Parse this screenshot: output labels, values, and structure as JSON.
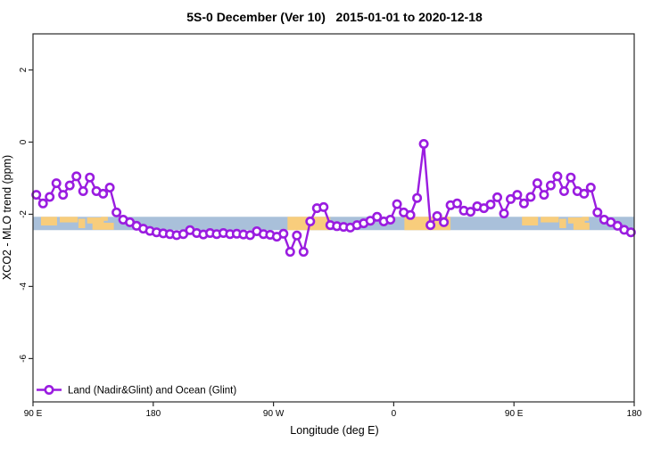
{
  "title": "5S-0 December (Ver 10)   2015-01-01 to 2020-12-18",
  "legend": {
    "label": "Land (Nadir&Glint) and Ocean (Glint)"
  },
  "colors": {
    "series": "#9A1CE0",
    "marker_fill": "#ffffff",
    "ocean": "#A9C0DA",
    "land": "#F8CD7C",
    "axis": "#2a2a2a"
  },
  "chart_data": {
    "type": "line",
    "title": "5S-0 December (Ver 10)   2015-01-01 to 2020-12-18",
    "xlabel": "Longitude (deg E)",
    "ylabel": "XCO2 - MLO trend (ppm)",
    "xlim": [
      90,
      540
    ],
    "ylim": [
      -7.2,
      3.0
    ],
    "grid": false,
    "legend_position": "bottom-left",
    "x_ticks": [
      {
        "value": 90,
        "label": "90 E"
      },
      {
        "value": 180,
        "label": "180"
      },
      {
        "value": 270,
        "label": "90 W"
      },
      {
        "value": 360,
        "label": "0"
      },
      {
        "value": 450,
        "label": "90 E"
      },
      {
        "value": 540,
        "label": "180"
      }
    ],
    "y_ticks": [
      {
        "value": 2,
        "label": "2"
      },
      {
        "value": 0,
        "label": "0"
      },
      {
        "value": -2,
        "label": "-2"
      },
      {
        "value": -4,
        "label": "-4"
      },
      {
        "value": -6,
        "label": "-6"
      }
    ],
    "series": [
      {
        "name": "Land (Nadir&Glint) and Ocean (Glint)",
        "x": [
          92.5,
          97.5,
          102.5,
          107.5,
          112.5,
          117.5,
          122.5,
          127.5,
          132.5,
          137.5,
          142.5,
          147.5,
          152.5,
          157.5,
          162.5,
          167.5,
          172.5,
          177.5,
          182.5,
          187.5,
          192.5,
          197.5,
          202.5,
          207.5,
          212.5,
          217.5,
          222.5,
          227.5,
          232.5,
          237.5,
          242.5,
          247.5,
          252.5,
          257.5,
          262.5,
          267.5,
          272.5,
          277.5,
          282.5,
          287.5,
          292.5,
          297.5,
          302.5,
          307.5,
          312.5,
          317.5,
          322.5,
          327.5,
          332.5,
          337.5,
          342.5,
          347.5,
          352.5,
          357.5,
          362.5,
          367.5,
          372.5,
          377.5,
          382.5,
          387.5,
          392.5,
          397.5,
          402.5,
          407.5,
          412.5,
          417.5,
          422.5,
          427.5,
          432.5,
          437.5,
          442.5,
          447.5,
          452.5,
          457.5,
          462.5,
          467.5,
          472.5,
          477.5,
          482.5,
          487.5,
          492.5,
          497.5,
          502.5,
          507.5,
          512.5,
          517.5,
          522.5,
          527.5,
          532.5,
          537.5
        ],
        "values": [
          -1.46,
          -1.7,
          -1.52,
          -1.14,
          -1.46,
          -1.2,
          -0.95,
          -1.36,
          -0.98,
          -1.36,
          -1.43,
          -1.26,
          -1.95,
          -2.15,
          -2.22,
          -2.32,
          -2.4,
          -2.46,
          -2.5,
          -2.53,
          -2.55,
          -2.58,
          -2.55,
          -2.44,
          -2.52,
          -2.56,
          -2.52,
          -2.55,
          -2.52,
          -2.55,
          -2.54,
          -2.56,
          -2.58,
          -2.47,
          -2.55,
          -2.57,
          -2.62,
          -2.54,
          -3.04,
          -2.59,
          -3.04,
          -2.2,
          -1.83,
          -1.8,
          -2.3,
          -2.33,
          -2.35,
          -2.37,
          -2.3,
          -2.25,
          -2.18,
          -2.07,
          -2.2,
          -2.15,
          -1.72,
          -1.95,
          -2.02,
          -1.55,
          -0.05,
          -2.3,
          -2.05,
          -2.22,
          -1.75,
          -1.7,
          -1.9,
          -1.93,
          -1.78,
          -1.83,
          -1.73,
          -1.53,
          -1.98,
          -1.58,
          -1.46,
          -1.7,
          -1.52,
          -1.14,
          -1.46,
          -1.2,
          -0.95,
          -1.36,
          -0.98,
          -1.36,
          -1.43,
          -1.26,
          -1.95,
          -2.15,
          -2.22,
          -2.32,
          -2.43,
          -2.5
        ]
      }
    ],
    "map_band": {
      "description": "ocean/land strip along the latitude band",
      "y_top": -2.07,
      "y_bottom": -2.44,
      "land_segments": [
        {
          "x0": 280.5,
          "x1": 312.5
        },
        {
          "x0": 368.0,
          "x1": 402.5
        }
      ],
      "land_patches": [
        {
          "x0": 96.0,
          "x1": 108.0,
          "top": 0.0,
          "h": 0.65
        },
        {
          "x0": 110.0,
          "x1": 123.5,
          "top": 0.0,
          "h": 0.42
        },
        {
          "x0": 124.0,
          "x1": 129.0,
          "top": 0.15,
          "h": 0.7
        },
        {
          "x0": 130.5,
          "x1": 143.0,
          "top": 0.05,
          "h": 0.45
        },
        {
          "x0": 134.5,
          "x1": 150.5,
          "top": 0.45,
          "h": 0.52
        },
        {
          "x0": 141.0,
          "x1": 146.0,
          "top": 0.0,
          "h": 0.3
        },
        {
          "x0": 456.0,
          "x1": 468.0,
          "top": 0.0,
          "h": 0.65
        },
        {
          "x0": 470.0,
          "x1": 483.5,
          "top": 0.0,
          "h": 0.42
        },
        {
          "x0": 484.0,
          "x1": 489.0,
          "top": 0.15,
          "h": 0.7
        },
        {
          "x0": 490.5,
          "x1": 503.0,
          "top": 0.05,
          "h": 0.45
        },
        {
          "x0": 494.5,
          "x1": 506.5,
          "top": 0.45,
          "h": 0.52
        },
        {
          "x0": 501.0,
          "x1": 506.0,
          "top": 0.0,
          "h": 0.3
        }
      ]
    }
  }
}
